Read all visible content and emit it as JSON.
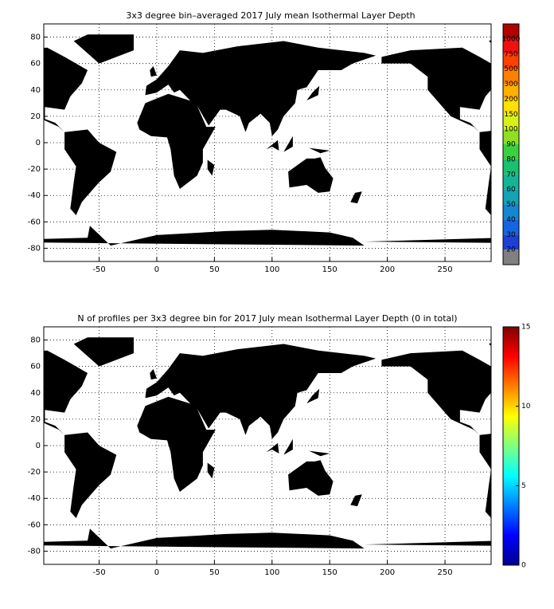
{
  "panels": [
    {
      "title": "3x3 degree bin–averaged 2017 July mean Isothermal Layer Depth",
      "xlim": [
        -98,
        290
      ],
      "ylim": [
        -90,
        90
      ],
      "xticks": [
        -50,
        0,
        50,
        100,
        150,
        200,
        250
      ],
      "yticks": [
        -80,
        -60,
        -40,
        -20,
        0,
        20,
        40,
        60,
        80
      ],
      "grid": true,
      "colorbar": {
        "type": "discrete",
        "ticks": [
          20,
          30,
          40,
          50,
          60,
          70,
          80,
          90,
          100,
          150,
          200,
          300,
          500,
          750,
          1000
        ],
        "colors": [
          "#808080",
          "#1c3fd6",
          "#1466e0",
          "#1487d0",
          "#14a3b5",
          "#14b597",
          "#18c070",
          "#3ccf40",
          "#8ee020",
          "#d8f018",
          "#ffe000",
          "#ffb000",
          "#ff8000",
          "#ff4000",
          "#f01010",
          "#b00000"
        ]
      }
    },
    {
      "title": "N of profiles per 3x3 degree bin for 2017 July mean Isothermal Layer Depth  (0 in total)",
      "xlim": [
        -98,
        290
      ],
      "ylim": [
        -90,
        90
      ],
      "xticks": [
        -50,
        0,
        50,
        100,
        150,
        200,
        250
      ],
      "yticks": [
        -80,
        -60,
        -40,
        -20,
        0,
        20,
        40,
        60,
        80
      ],
      "grid": true,
      "colorbar": {
        "type": "continuous",
        "colormap": "jet",
        "clim": [
          0,
          15
        ],
        "ticks": [
          0,
          5,
          10,
          15
        ]
      }
    }
  ]
}
